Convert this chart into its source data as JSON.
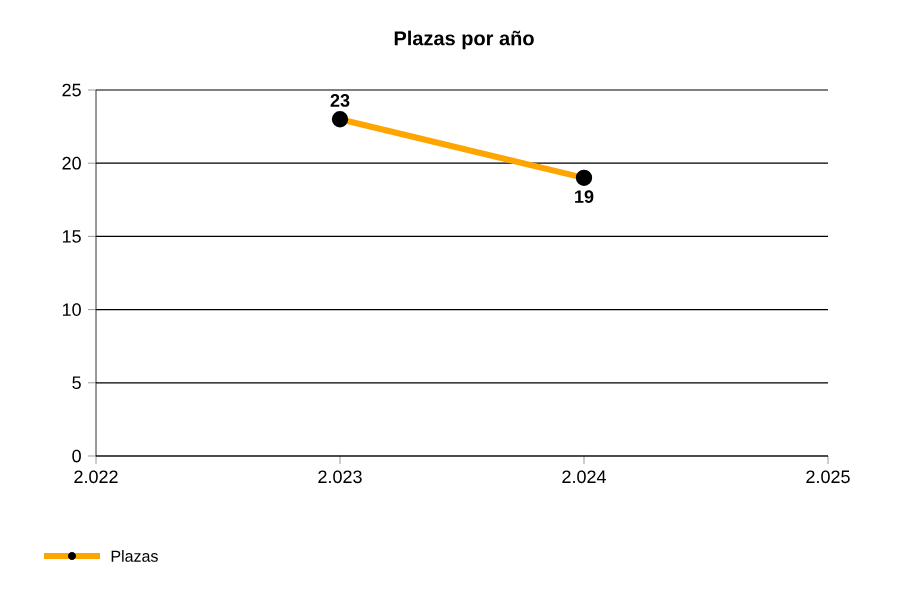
{
  "chart_data": {
    "type": "line",
    "title": "Plazas por año",
    "x": [
      2023,
      2024
    ],
    "series": [
      {
        "name": "Plazas",
        "color": "#ffa500",
        "values": [
          23,
          19
        ]
      }
    ],
    "xlim": [
      2022,
      2025
    ],
    "xticks": [
      {
        "value": 2022,
        "label": "2.022"
      },
      {
        "value": 2023,
        "label": "2.023"
      },
      {
        "value": 2024,
        "label": "2.024"
      },
      {
        "value": 2025,
        "label": "2.025"
      }
    ],
    "ylim": [
      0,
      25
    ],
    "yticks": [
      0,
      5,
      10,
      15,
      20,
      25
    ],
    "grid": "y",
    "legend": "bottom left",
    "marker": "circle",
    "line_style": "solid",
    "data_labels": true
  }
}
